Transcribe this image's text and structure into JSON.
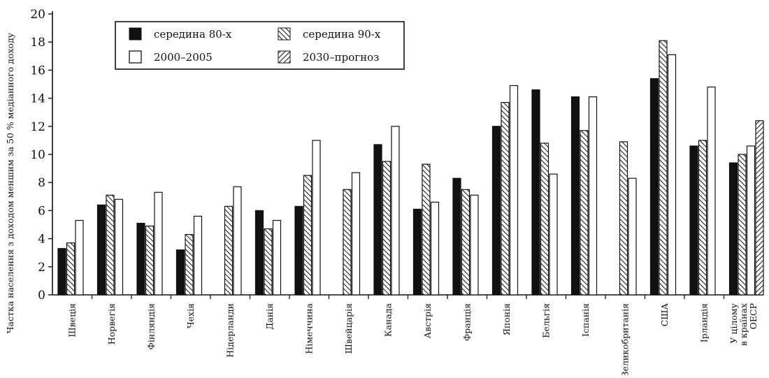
{
  "chart_data": {
    "type": "bar",
    "ylabel": "Частка населення з доходом меншим за 50 % медіанного доходу",
    "xlabel": "",
    "ylim": [
      0,
      20
    ],
    "yticks": [
      0,
      2,
      4,
      6,
      8,
      10,
      12,
      14,
      16,
      18,
      20
    ],
    "grid": false,
    "legend_position": "top-left",
    "categories": [
      [
        "Швеція"
      ],
      [
        "Норвегія"
      ],
      [
        "Фінляндія"
      ],
      [
        "Чехія"
      ],
      [
        "Нідерланди"
      ],
      [
        "Данія"
      ],
      [
        "Німеччина"
      ],
      [
        "Швейцарія"
      ],
      [
        "Канада"
      ],
      [
        "Австрія"
      ],
      [
        "Франція"
      ],
      [
        "Японія"
      ],
      [
        "Бельгія"
      ],
      [
        "Іспанія"
      ],
      [
        "Великобританія"
      ],
      [
        "США"
      ],
      [
        "Ірландія"
      ],
      [
        "У цілому",
        "в країнах",
        "ОЕСР"
      ]
    ],
    "series": [
      {
        "name": "середина 80-х",
        "pattern": "solid",
        "values": [
          3.3,
          6.4,
          5.1,
          3.2,
          null,
          6.0,
          6.3,
          null,
          10.7,
          6.1,
          8.3,
          12.0,
          14.6,
          14.1,
          null,
          15.4,
          10.6,
          9.4
        ]
      },
      {
        "name": "середина 90-х",
        "pattern": "hatch-forward",
        "values": [
          3.7,
          7.1,
          4.9,
          4.3,
          6.3,
          4.7,
          8.5,
          7.5,
          9.5,
          9.3,
          7.5,
          13.7,
          10.8,
          11.7,
          10.9,
          18.1,
          11.0,
          10.0
        ]
      },
      {
        "name": "2000–2005",
        "pattern": "white",
        "values": [
          5.3,
          6.8,
          7.3,
          5.6,
          7.7,
          5.3,
          11.0,
          8.7,
          12.0,
          6.6,
          7.1,
          14.9,
          8.6,
          14.1,
          8.3,
          17.1,
          14.8,
          10.6
        ]
      },
      {
        "name": "2030–прогноз",
        "pattern": "hatch-backward",
        "values": [
          null,
          null,
          null,
          null,
          null,
          null,
          null,
          null,
          null,
          null,
          null,
          null,
          null,
          null,
          null,
          null,
          null,
          12.4
        ]
      }
    ]
  }
}
